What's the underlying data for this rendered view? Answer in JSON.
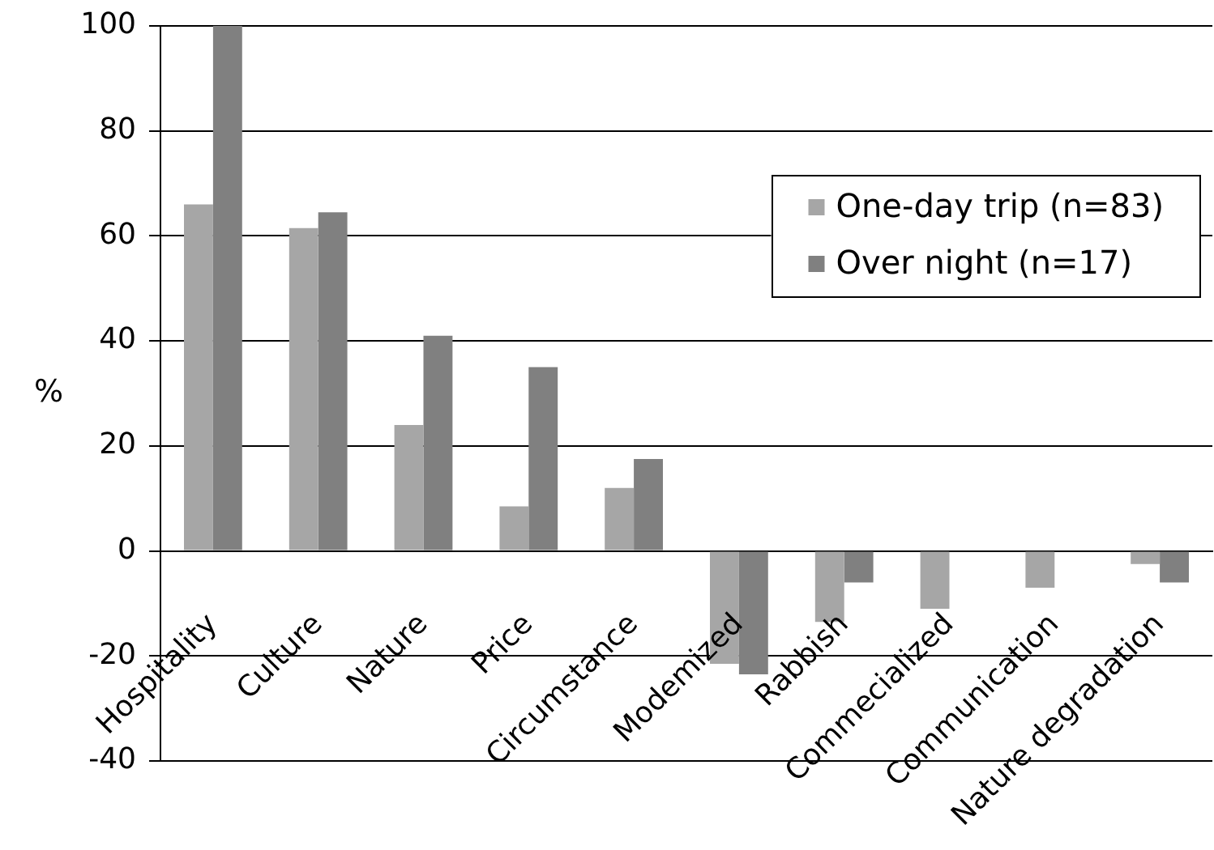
{
  "chart_data": {
    "type": "bar",
    "ylabel": "%",
    "categories": [
      "Hospitality",
      "Culture",
      "Nature",
      "Price",
      "Circumstance",
      "Modemized",
      "Rabbish",
      "Commecialized",
      "Communication",
      "Nature degradation"
    ],
    "series": [
      {
        "name": "One-day trip (n=83)",
        "color": "#a6a6a6",
        "values": [
          66,
          61.5,
          24,
          8.5,
          12,
          -21.5,
          -13.5,
          -11,
          -7,
          -2.5
        ]
      },
      {
        "name": "Over night (n=17)",
        "color": "#808080",
        "values": [
          100,
          64.5,
          41,
          35,
          17.5,
          -23.5,
          -6,
          null,
          null,
          -6
        ]
      }
    ],
    "ylim": [
      -40,
      100
    ],
    "yticks": [
      -40,
      -20,
      0,
      20,
      40,
      60,
      80,
      100
    ],
    "grid": "y",
    "legend": "top right"
  }
}
